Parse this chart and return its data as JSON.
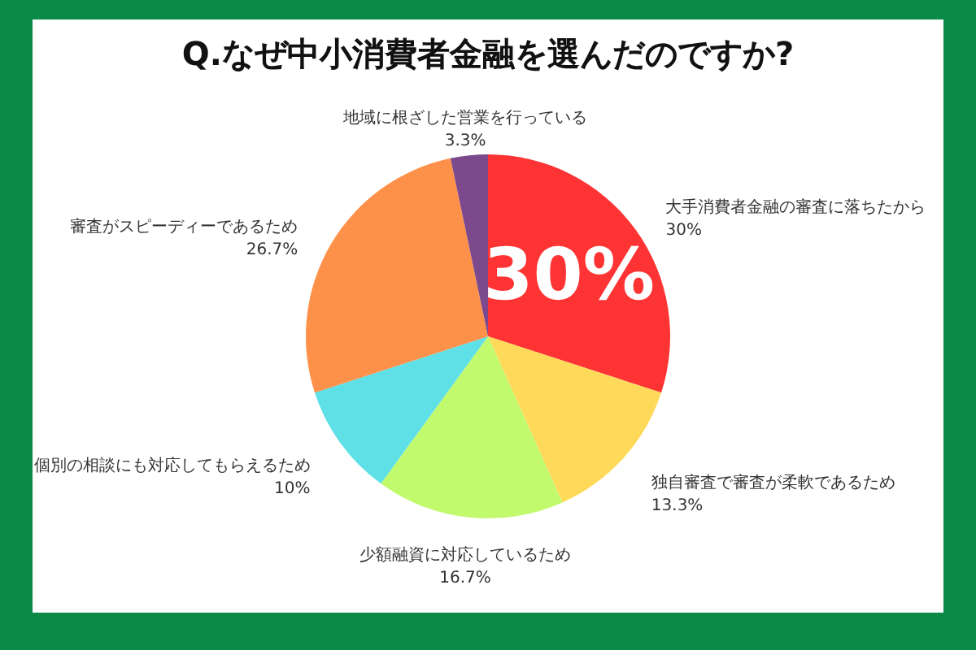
{
  "chart_data": {
    "type": "pie",
    "title": "Q.なぜ中小消費者金融を選んだのですか?",
    "categories": [
      "大手消費者金融の審査に落ちたから",
      "独自審査で審査が柔軟であるため",
      "少額融資に対応しているため",
      "個別の相談にも対応してもらえるため",
      "審査がスピーディーであるため",
      "地域に根ざした営業を行っている"
    ],
    "values": [
      30,
      13.3,
      16.7,
      10,
      26.7,
      3.3
    ],
    "value_labels": [
      "30%",
      "13.3%",
      "16.7%",
      "10%",
      "26.7%",
      "3.3%"
    ],
    "colors": [
      "#fe3334",
      "#ffda5a",
      "#c2fa6e",
      "#5ee0e6",
      "#fd9149",
      "#7c4a8c"
    ],
    "annotations": [
      "30%"
    ],
    "legend": false
  }
}
